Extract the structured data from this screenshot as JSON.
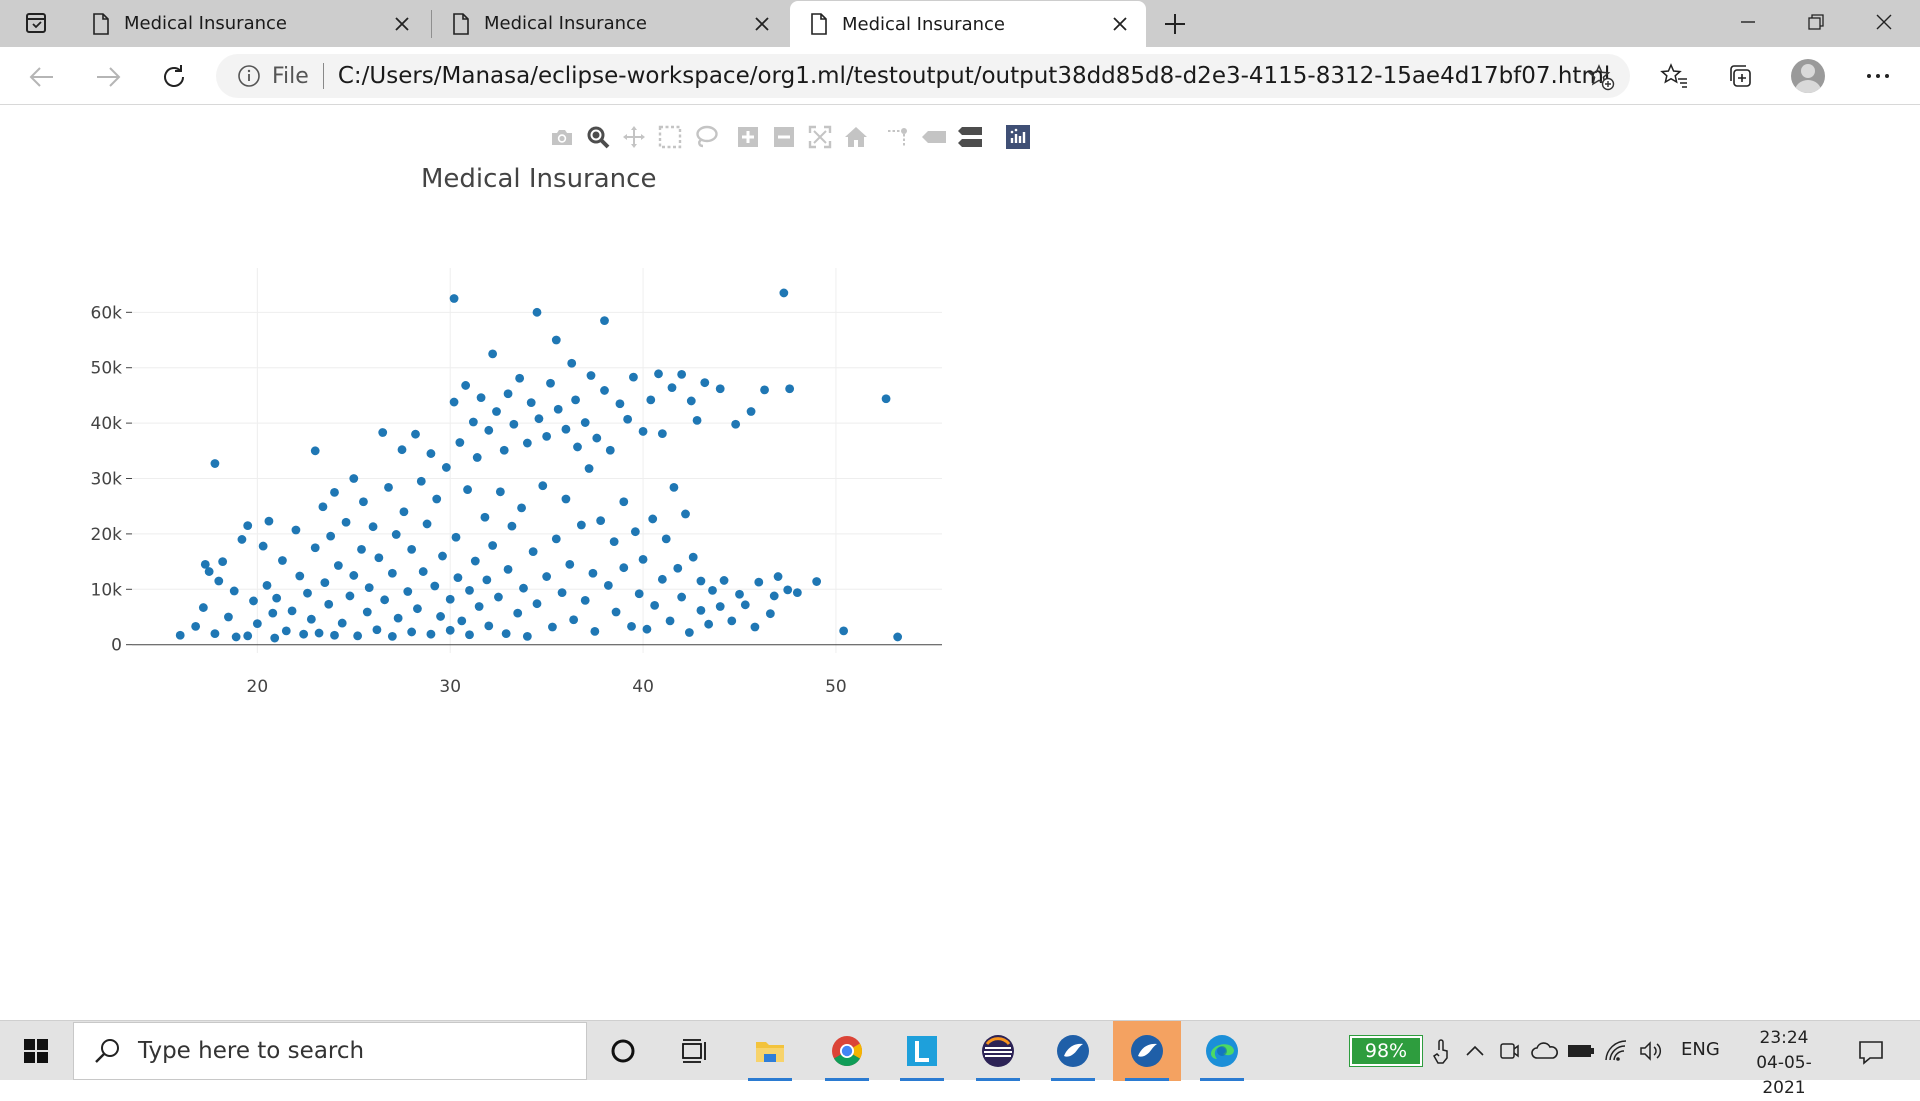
{
  "browser": {
    "tabs": [
      {
        "label": "Medical Insurance",
        "active": false
      },
      {
        "label": "Medical Insurance",
        "active": false
      },
      {
        "label": "Medical Insurance",
        "active": true
      }
    ],
    "address": {
      "scheme_label": "File",
      "url": "C:/Users/Manasa/eclipse-workspace/org1.ml/testoutput/output38dd85d8-d2e3-4115-8312-15ae4d17bf07.html"
    }
  },
  "plot_toolbar": {
    "icons": [
      "camera-icon",
      "zoom-icon",
      "pan-icon",
      "box-select-icon",
      "lasso-select-icon",
      "zoom-in-icon",
      "zoom-out-icon",
      "autoscale-icon",
      "reset-axes-icon",
      "spike-lines-icon",
      "hover-closest-icon",
      "hover-compare-icon",
      "plotly-logo-icon"
    ]
  },
  "chart_data": {
    "type": "scatter",
    "title": "Medical Insurance",
    "xlabel": "",
    "ylabel": "",
    "xlim": [
      13.5,
      55.5
    ],
    "ylim": [
      -1500,
      68000
    ],
    "x_ticks": [
      20,
      30,
      40,
      50
    ],
    "x_tick_labels": [
      "20",
      "30",
      "40",
      "50"
    ],
    "y_ticks": [
      0,
      10000,
      20000,
      30000,
      40000,
      50000,
      60000
    ],
    "y_tick_labels": [
      "0",
      "10k",
      "20k",
      "30k",
      "40k",
      "50k",
      "60k"
    ],
    "grid": true,
    "marker_color": "#1f77b4",
    "points": [
      [
        16.0,
        1700
      ],
      [
        16.8,
        3300
      ],
      [
        17.2,
        6700
      ],
      [
        17.3,
        14500
      ],
      [
        17.5,
        13200
      ],
      [
        17.8,
        2000
      ],
      [
        17.8,
        32700
      ],
      [
        18.0,
        11500
      ],
      [
        18.2,
        15000
      ],
      [
        18.5,
        5000
      ],
      [
        18.8,
        9700
      ],
      [
        18.9,
        1400
      ],
      [
        19.2,
        19000
      ],
      [
        19.5,
        21500
      ],
      [
        19.5,
        1600
      ],
      [
        19.8,
        7900
      ],
      [
        20.0,
        3800
      ],
      [
        20.3,
        17800
      ],
      [
        20.5,
        10700
      ],
      [
        20.6,
        22300
      ],
      [
        20.8,
        5700
      ],
      [
        20.9,
        1200
      ],
      [
        21.0,
        8400
      ],
      [
        21.3,
        15200
      ],
      [
        21.5,
        2500
      ],
      [
        21.8,
        6100
      ],
      [
        22.0,
        20700
      ],
      [
        22.2,
        12400
      ],
      [
        22.4,
        1900
      ],
      [
        22.6,
        9300
      ],
      [
        22.8,
        4600
      ],
      [
        23.0,
        17500
      ],
      [
        23.0,
        35000
      ],
      [
        23.2,
        2100
      ],
      [
        23.4,
        24900
      ],
      [
        23.5,
        11200
      ],
      [
        23.7,
        7300
      ],
      [
        23.8,
        19600
      ],
      [
        24.0,
        1700
      ],
      [
        24.0,
        27500
      ],
      [
        24.2,
        14300
      ],
      [
        24.4,
        3900
      ],
      [
        24.6,
        22100
      ],
      [
        24.8,
        8800
      ],
      [
        25.0,
        12500
      ],
      [
        25.0,
        30000
      ],
      [
        25.2,
        1600
      ],
      [
        25.4,
        17200
      ],
      [
        25.5,
        25800
      ],
      [
        25.7,
        5900
      ],
      [
        25.8,
        10300
      ],
      [
        26.0,
        21300
      ],
      [
        26.2,
        2700
      ],
      [
        26.3,
        15700
      ],
      [
        26.5,
        38300
      ],
      [
        26.6,
        8100
      ],
      [
        26.8,
        28400
      ],
      [
        27.0,
        1500
      ],
      [
        27.0,
        12900
      ],
      [
        27.2,
        19900
      ],
      [
        27.3,
        4800
      ],
      [
        27.5,
        35200
      ],
      [
        27.6,
        24000
      ],
      [
        27.8,
        9600
      ],
      [
        28.0,
        17200
      ],
      [
        28.0,
        2300
      ],
      [
        28.2,
        38000
      ],
      [
        28.3,
        6500
      ],
      [
        28.5,
        29500
      ],
      [
        28.6,
        13200
      ],
      [
        28.8,
        21800
      ],
      [
        29.0,
        1900
      ],
      [
        29.0,
        34500
      ],
      [
        29.2,
        10600
      ],
      [
        29.3,
        26300
      ],
      [
        29.5,
        5100
      ],
      [
        29.6,
        16000
      ],
      [
        29.8,
        32000
      ],
      [
        30.0,
        8200
      ],
      [
        30.0,
        2600
      ],
      [
        30.2,
        62500
      ],
      [
        30.2,
        43800
      ],
      [
        30.3,
        19400
      ],
      [
        30.4,
        12100
      ],
      [
        30.5,
        36500
      ],
      [
        30.6,
        4300
      ],
      [
        30.8,
        46800
      ],
      [
        30.9,
        28000
      ],
      [
        31.0,
        9800
      ],
      [
        31.0,
        1800
      ],
      [
        31.2,
        40200
      ],
      [
        31.3,
        15100
      ],
      [
        31.4,
        33800
      ],
      [
        31.5,
        6900
      ],
      [
        31.6,
        44600
      ],
      [
        31.8,
        23000
      ],
      [
        31.9,
        11700
      ],
      [
        32.0,
        38700
      ],
      [
        32.0,
        3400
      ],
      [
        32.2,
        52500
      ],
      [
        32.2,
        17900
      ],
      [
        32.4,
        42100
      ],
      [
        32.5,
        8600
      ],
      [
        32.6,
        27600
      ],
      [
        32.8,
        35100
      ],
      [
        32.9,
        2000
      ],
      [
        33.0,
        45300
      ],
      [
        33.0,
        13600
      ],
      [
        33.2,
        21400
      ],
      [
        33.3,
        39800
      ],
      [
        33.5,
        5700
      ],
      [
        33.6,
        48100
      ],
      [
        33.7,
        24700
      ],
      [
        33.8,
        10200
      ],
      [
        34.0,
        36400
      ],
      [
        34.0,
        1500
      ],
      [
        34.2,
        43700
      ],
      [
        34.3,
        16800
      ],
      [
        34.5,
        60000
      ],
      [
        34.5,
        7400
      ],
      [
        34.6,
        40800
      ],
      [
        34.8,
        28700
      ],
      [
        35.0,
        37600
      ],
      [
        35.0,
        12300
      ],
      [
        35.2,
        47200
      ],
      [
        35.3,
        3200
      ],
      [
        35.5,
        55000
      ],
      [
        35.5,
        19100
      ],
      [
        35.6,
        42500
      ],
      [
        35.8,
        9400
      ],
      [
        36.0,
        38900
      ],
      [
        36.0,
        26300
      ],
      [
        36.2,
        14500
      ],
      [
        36.3,
        50800
      ],
      [
        36.4,
        4500
      ],
      [
        36.5,
        44200
      ],
      [
        36.6,
        35700
      ],
      [
        36.8,
        21600
      ],
      [
        37.0,
        40100
      ],
      [
        37.0,
        8000
      ],
      [
        37.2,
        31800
      ],
      [
        37.3,
        48600
      ],
      [
        37.4,
        12900
      ],
      [
        37.5,
        2400
      ],
      [
        37.6,
        37300
      ],
      [
        37.8,
        22400
      ],
      [
        38.0,
        58500
      ],
      [
        38.0,
        45900
      ],
      [
        38.2,
        10700
      ],
      [
        38.3,
        35100
      ],
      [
        38.5,
        18600
      ],
      [
        38.6,
        5900
      ],
      [
        38.8,
        43500
      ],
      [
        39.0,
        25800
      ],
      [
        39.0,
        13900
      ],
      [
        39.2,
        40700
      ],
      [
        39.4,
        3300
      ],
      [
        39.5,
        48300
      ],
      [
        39.6,
        20400
      ],
      [
        39.8,
        9200
      ],
      [
        40.0,
        38500
      ],
      [
        40.0,
        15400
      ],
      [
        40.2,
        2800
      ],
      [
        40.4,
        44200
      ],
      [
        40.5,
        22700
      ],
      [
        40.6,
        7100
      ],
      [
        40.8,
        48900
      ],
      [
        41.0,
        11800
      ],
      [
        41.0,
        38100
      ],
      [
        41.2,
        19100
      ],
      [
        41.4,
        4300
      ],
      [
        41.5,
        46400
      ],
      [
        41.6,
        28400
      ],
      [
        41.8,
        13800
      ],
      [
        42.0,
        8600
      ],
      [
        42.0,
        48800
      ],
      [
        42.2,
        23600
      ],
      [
        42.4,
        2200
      ],
      [
        42.5,
        44000
      ],
      [
        42.6,
        15800
      ],
      [
        42.8,
        40500
      ],
      [
        43.0,
        6200
      ],
      [
        43.0,
        11500
      ],
      [
        43.2,
        47300
      ],
      [
        43.4,
        3700
      ],
      [
        43.6,
        9800
      ],
      [
        44.0,
        46200
      ],
      [
        44.0,
        6900
      ],
      [
        44.2,
        11600
      ],
      [
        44.6,
        4300
      ],
      [
        44.8,
        39800
      ],
      [
        45.0,
        9100
      ],
      [
        45.3,
        7200
      ],
      [
        45.6,
        42100
      ],
      [
        45.8,
        3200
      ],
      [
        46.0,
        11300
      ],
      [
        46.3,
        46000
      ],
      [
        46.6,
        5600
      ],
      [
        46.8,
        8800
      ],
      [
        47.0,
        12300
      ],
      [
        47.3,
        63500
      ],
      [
        47.5,
        9900
      ],
      [
        47.6,
        46200
      ],
      [
        48.0,
        9400
      ],
      [
        49.0,
        11400
      ],
      [
        50.4,
        2500
      ],
      [
        52.6,
        44400
      ],
      [
        53.2,
        1400
      ]
    ]
  },
  "taskbar": {
    "search_placeholder": "Type here to search",
    "battery_percent": "98%",
    "language": "ENG",
    "time": "23:24",
    "date": "04-05-2021",
    "apps": [
      "cortana-icon",
      "task-view-icon",
      "file-explorer-icon",
      "chrome-icon",
      "l-app-icon",
      "eclipse-icon",
      "app-bird-icon",
      "app-bird-active-icon",
      "edge-icon"
    ]
  }
}
